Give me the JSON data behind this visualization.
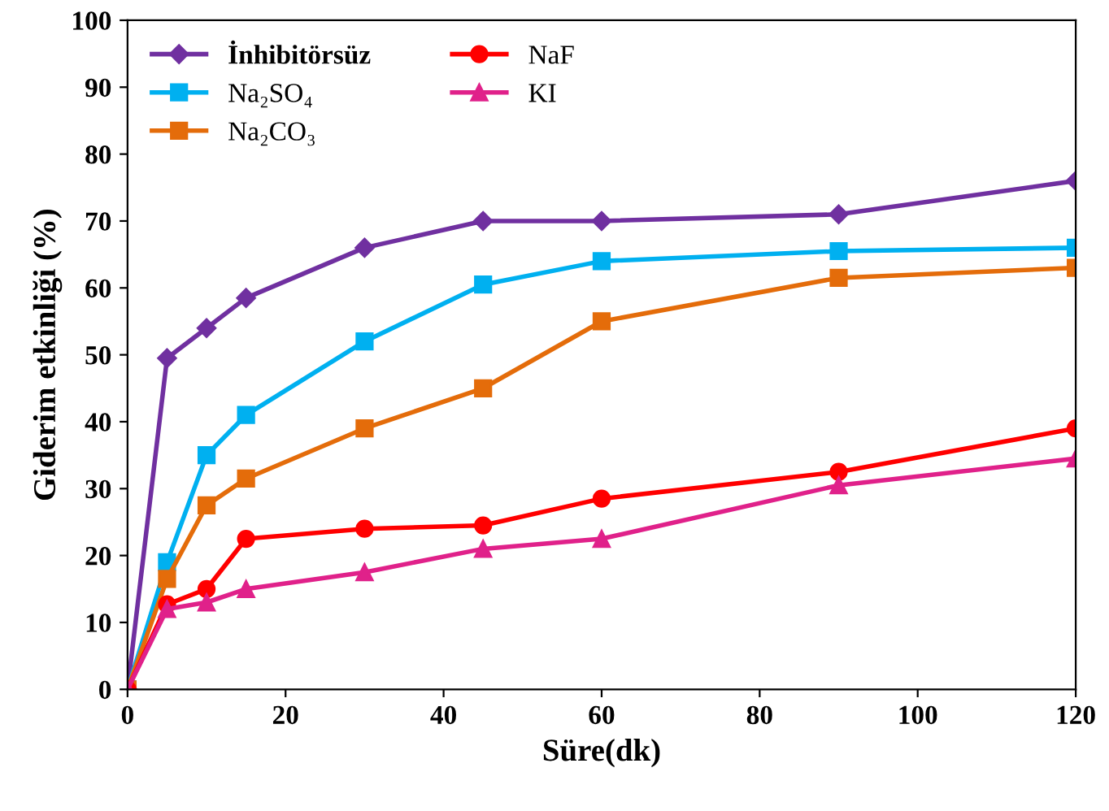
{
  "chart_data": {
    "type": "line",
    "xlabel": "Süre(dk)",
    "ylabel": "Giderim etkinliği (%)",
    "x": [
      0,
      5,
      10,
      15,
      30,
      45,
      60,
      90,
      120
    ],
    "series": [
      {
        "name": "İnhibitörsüz",
        "color": "#7030a0",
        "marker": "diamond",
        "values": [
          0,
          49.5,
          54,
          58.5,
          66,
          70,
          70,
          71,
          76
        ]
      },
      {
        "name": "Na₂SO₄",
        "color": "#00b0f0",
        "marker": "square",
        "values": [
          0,
          19,
          35,
          41,
          52,
          60.5,
          64,
          65.5,
          66
        ]
      },
      {
        "name": "Na₂CO₃",
        "color": "#e46c0a",
        "marker": "square",
        "values": [
          0,
          16.5,
          27.5,
          31.5,
          39,
          45,
          55,
          61.5,
          63
        ]
      },
      {
        "name": "NaF",
        "color": "#ff0000",
        "marker": "circle",
        "values": [
          0,
          12.7,
          15,
          22.5,
          24,
          24.5,
          28.5,
          32.5,
          39
        ]
      },
      {
        "name": "KI",
        "color": "#e0218a",
        "marker": "triangle",
        "values": [
          0,
          12,
          13,
          15,
          17.5,
          21,
          22.5,
          30.5,
          34.5
        ]
      }
    ],
    "xlim": [
      0,
      120
    ],
    "ylim": [
      0,
      100
    ],
    "xticks": [
      0,
      20,
      40,
      60,
      80,
      100,
      120
    ],
    "yticks": [
      0,
      10,
      20,
      30,
      40,
      50,
      60,
      70,
      80,
      90,
      100
    ],
    "grid": false,
    "legend": "top left",
    "line_style": "solid"
  }
}
